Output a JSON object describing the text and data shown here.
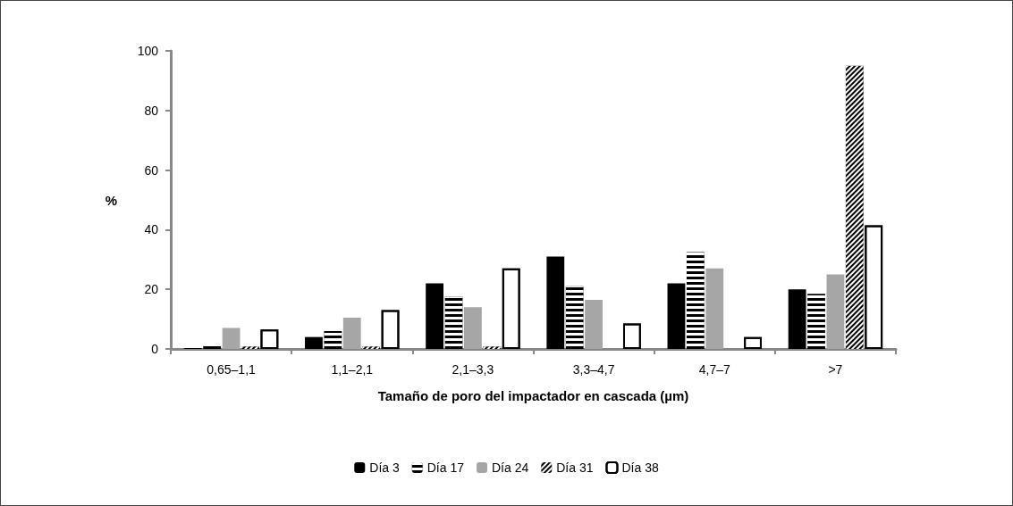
{
  "chart_data": {
    "type": "bar",
    "xlabel": "Tamaño de poro del impactador en cascada (µm)",
    "ylabel": "%",
    "categories": [
      "0,65–1,1",
      "1,1–2,1",
      "2,1–3,3",
      "3,3–4,7",
      "4,7–7",
      ">7"
    ],
    "series": [
      {
        "name": "Día 3",
        "color": "#000000",
        "values": [
          0.3,
          4,
          22,
          31,
          22,
          20
        ]
      },
      {
        "name": "Día 17",
        "color": "#000000",
        "values": [
          1.2,
          6,
          17.5,
          21,
          32.5,
          18.5
        ]
      },
      {
        "name": "Día 24",
        "color": "#a6a6a6",
        "values": [
          7,
          10.5,
          14,
          16.5,
          27,
          25
        ]
      },
      {
        "name": "Día 31",
        "color": "#000000",
        "values": [
          0.8,
          0.8,
          0.8,
          0,
          0,
          95
        ]
      },
      {
        "name": "Día 38",
        "color": "#ffffff",
        "values": [
          6.5,
          13,
          27,
          8.5,
          4,
          41.5
        ]
      }
    ],
    "ylim": [
      0,
      100
    ],
    "yticks": [
      0,
      20,
      40,
      60,
      80,
      100
    ],
    "grid": false,
    "legend": "bottom"
  }
}
